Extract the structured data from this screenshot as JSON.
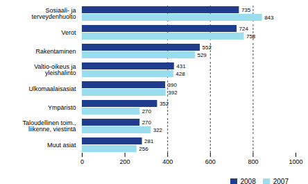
{
  "chart_data": {
    "type": "bar",
    "orientation": "horizontal",
    "categories": [
      "Sosiaali- ja\nterveydenhuolto",
      "Verot",
      "Rakentaminen",
      "Valtio-oikeus ja\nyleishalinto",
      "Ulkomaalaisasiat",
      "Ympäristö",
      "Taloudellinen toim.,\nliikenne, viestintä",
      "Muut asiat"
    ],
    "series": [
      {
        "name": "2008",
        "color": "#1f3d8c",
        "values": [
          735,
          724,
          552,
          431,
          390,
          352,
          270,
          281
        ]
      },
      {
        "name": "2007",
        "color": "#99ddee",
        "values": [
          843,
          758,
          529,
          428,
          392,
          270,
          322,
          256
        ]
      }
    ],
    "xlim": [
      0,
      1000
    ],
    "xticks": [
      0,
      200,
      400,
      600,
      800,
      1000
    ],
    "vlines": [
      400,
      600,
      800
    ],
    "data_labels": true,
    "legend": "lower right"
  }
}
